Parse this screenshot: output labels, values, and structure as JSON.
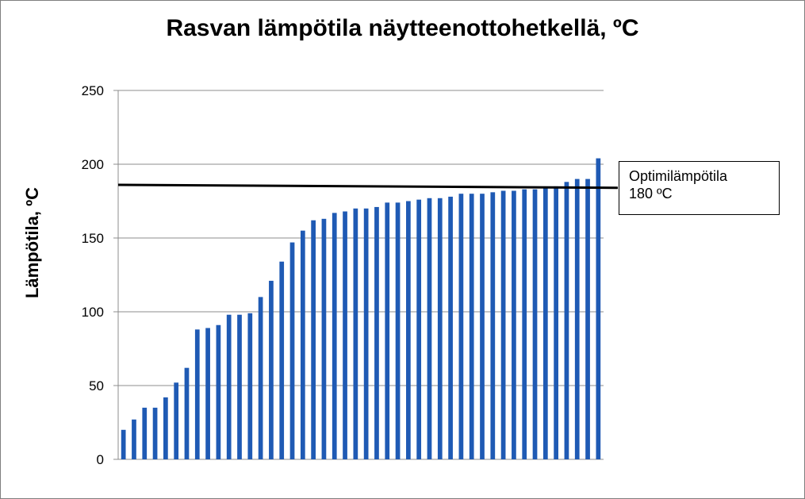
{
  "chart_data": {
    "type": "bar",
    "title": "Rasvan lämpötila näytteenottohetkellä, ºC",
    "ylabel": "Lämpötila, ºC",
    "xlabel": "",
    "ylim": [
      0,
      250
    ],
    "yticks": [
      "0",
      "50",
      "100",
      "150",
      "200",
      "250"
    ],
    "grid": true,
    "bar_color": "#1f5ab4",
    "values": [
      20,
      27,
      35,
      35,
      42,
      52,
      62,
      88,
      89,
      91,
      98,
      98,
      99,
      110,
      121,
      134,
      147,
      155,
      162,
      163,
      167,
      168,
      170,
      170,
      171,
      174,
      174,
      175,
      176,
      177,
      177,
      178,
      180,
      180,
      180,
      181,
      182,
      182,
      183,
      183,
      184,
      185,
      188,
      190,
      190,
      204
    ],
    "reference_line": {
      "start": 186,
      "end": 184,
      "color": "#000000"
    },
    "annotation": {
      "line1": "Optimilämpötila",
      "line2": "180 ºC"
    }
  }
}
